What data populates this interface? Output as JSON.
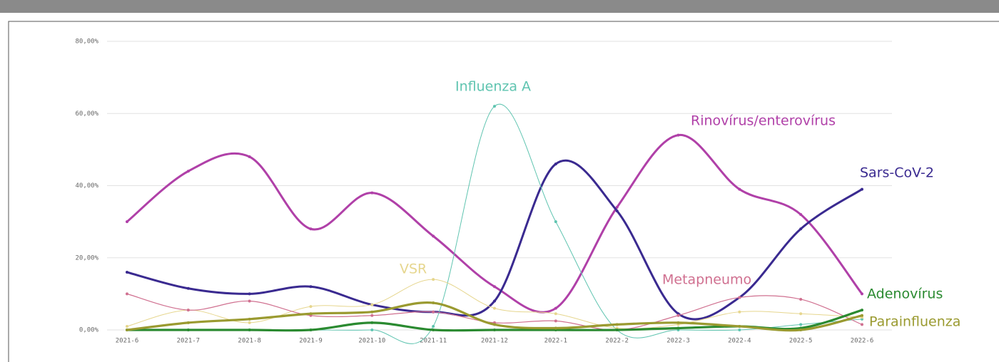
{
  "chart_data": {
    "type": "line",
    "categories": [
      "2021-6",
      "2021-7",
      "2021-8",
      "2021-9",
      "2021-10",
      "2021-11",
      "2021-12",
      "2022-1",
      "2022-2",
      "2022-3",
      "2022-4",
      "2022-5",
      "2022-6"
    ],
    "series": [
      {
        "name": "Rinovírus/enterovírus",
        "color": "#b040a8",
        "values": [
          30,
          44,
          48,
          28,
          38,
          26,
          12,
          6,
          34,
          54,
          39,
          32,
          10
        ]
      },
      {
        "name": "Sars-CoV-2",
        "color": "#3a2a90",
        "values": [
          16,
          11.5,
          10,
          12,
          7,
          5,
          8,
          46,
          33,
          4.5,
          9,
          28,
          39
        ]
      },
      {
        "name": "Influenza A",
        "color": "#5fc4b0",
        "values": [
          0,
          0,
          0,
          0,
          0,
          1,
          62,
          30,
          0,
          0,
          0,
          1.5,
          3
        ]
      },
      {
        "name": "VSR",
        "color": "#e6d68e",
        "values": [
          1,
          5.5,
          2,
          6.5,
          7,
          14,
          6,
          4.5,
          0.5,
          1.5,
          5,
          4.5,
          3.5
        ]
      },
      {
        "name": "Metapneumo",
        "color": "#d07090",
        "values": [
          10,
          5.5,
          8,
          4,
          4,
          5,
          2,
          2.5,
          0,
          4,
          9,
          8.5,
          1.5
        ]
      },
      {
        "name": "Adenovírus",
        "color": "#2a8a30",
        "values": [
          0,
          0,
          0,
          0,
          2,
          0,
          0,
          0,
          0,
          0.5,
          1,
          0.5,
          5.5
        ]
      },
      {
        "name": "Parainfluenza",
        "color": "#9a9a30",
        "values": [
          0,
          2,
          3,
          4.5,
          5,
          7.5,
          1.5,
          0.5,
          1.5,
          2,
          1,
          0,
          4
        ]
      }
    ],
    "ylim": [
      0,
      80
    ],
    "yticks": [
      {
        "value": 0,
        "label": "0,00%"
      },
      {
        "value": 20,
        "label": "20,00%"
      },
      {
        "value": 40,
        "label": "40,00%"
      },
      {
        "value": 60,
        "label": "60,00%"
      },
      {
        "value": 80,
        "label": "80,00%"
      }
    ],
    "grid": true
  }
}
